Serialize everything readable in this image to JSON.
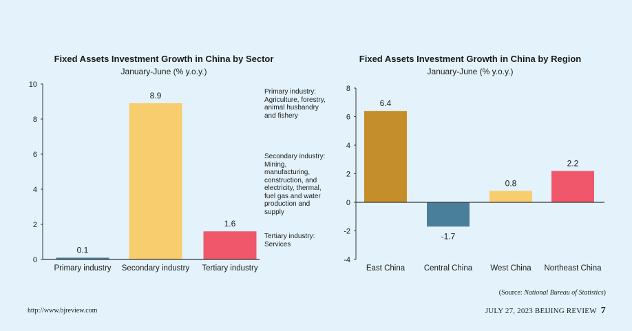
{
  "chart_data": [
    {
      "type": "bar",
      "title": "Fixed Assets Investment Growth in China by Sector",
      "subtitle": "January-June (% y.o.y.)",
      "categories": [
        "Primary industry",
        "Secondary industry",
        "Tertiary industry"
      ],
      "values": [
        0.1,
        8.9,
        1.6
      ],
      "value_labels": [
        "0.1",
        "8.9",
        "1.6"
      ],
      "colors": [
        "#4a7f99",
        "#f7cd6e",
        "#f0576b"
      ],
      "ylim": [
        0,
        10
      ],
      "yticks": [
        0,
        2,
        4,
        6,
        8,
        10
      ],
      "grid": false,
      "notes": [
        "Primary industry: Agriculture, forestry, animal husbandry and fishery",
        "Secondary industry: Mining, manufacturing, construction, and electricity, thermal, fuel gas and water production and supply",
        "Tertiary industry: Services"
      ]
    },
    {
      "type": "bar",
      "title": "Fixed Assets Investment Growth in China by Region",
      "subtitle": "January-June (% y.o.y.)",
      "categories": [
        "East China",
        "Central China",
        "West China",
        "Northeast China"
      ],
      "values": [
        6.4,
        -1.7,
        0.8,
        2.2
      ],
      "value_labels": [
        "6.4",
        "-1.7",
        "0.8",
        "2.2"
      ],
      "colors": [
        "#c48f2b",
        "#4a7f99",
        "#f7cd6e",
        "#f0576b"
      ],
      "ylim": [
        -4,
        8
      ],
      "yticks": [
        -4,
        -2,
        0,
        2,
        4,
        6,
        8
      ],
      "grid": false
    }
  ],
  "source": {
    "prefix": "(Source: ",
    "name": "National Bureau of Statistics",
    "suffix": ")"
  },
  "footer": {
    "url": "http://www.bjreview.com",
    "issue": "JULY 27, 2023 BEIJING REVIEW",
    "page": "7"
  }
}
